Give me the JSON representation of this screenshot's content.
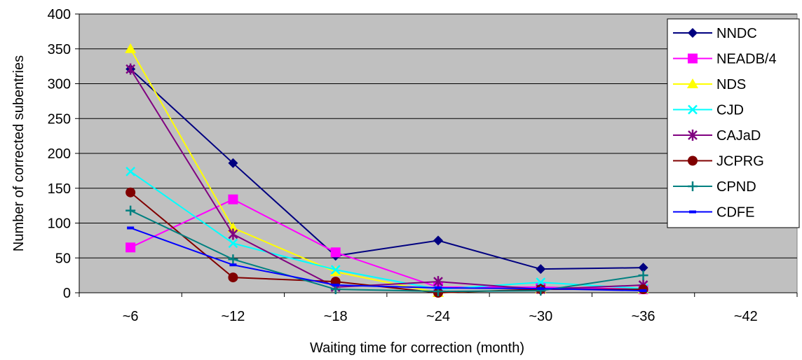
{
  "chart_data": {
    "type": "line",
    "title": "",
    "xlabel": "Waiting time for correction (month)",
    "ylabel": "Number of corrected subentries",
    "categories": [
      "~6",
      "~12",
      "~18",
      "~24",
      "~30",
      "~36",
      "~42"
    ],
    "ylim": [
      0,
      400
    ],
    "yticks": [
      "0",
      "50",
      "100",
      "150",
      "200",
      "250",
      "300",
      "350",
      "400"
    ],
    "grid": "horizontal",
    "background": "#c0c0c0",
    "legend": "right",
    "series": [
      {
        "name": "NNDC",
        "color": "#000080",
        "marker": "diamond",
        "values": [
          321,
          186,
          53,
          75,
          34,
          36,
          null
        ]
      },
      {
        "name": "NEADB/4",
        "color": "#ff00ff",
        "marker": "square",
        "values": [
          65,
          134,
          58,
          8,
          8,
          5,
          null
        ]
      },
      {
        "name": "NDS",
        "color": "#ffff00",
        "marker": "triangle",
        "values": [
          350,
          93,
          30,
          0,
          5,
          5,
          null
        ]
      },
      {
        "name": "CJD",
        "color": "#00ffff",
        "marker": "x",
        "values": [
          174,
          71,
          33,
          5,
          15,
          6,
          null
        ]
      },
      {
        "name": "CAJaD",
        "color": "#800080",
        "marker": "star",
        "values": [
          321,
          84,
          8,
          16,
          5,
          11,
          null
        ]
      },
      {
        "name": "JCPRG",
        "color": "#800000",
        "marker": "circle",
        "values": [
          144,
          22,
          16,
          0,
          5,
          5,
          null
        ]
      },
      {
        "name": "CPND",
        "color": "#008080",
        "marker": "plus",
        "values": [
          118,
          48,
          5,
          2,
          3,
          25,
          null
        ]
      },
      {
        "name": "CDFE",
        "color": "#0000ff",
        "marker": "dash",
        "values": [
          93,
          40,
          11,
          7,
          6,
          3,
          null
        ]
      }
    ]
  }
}
